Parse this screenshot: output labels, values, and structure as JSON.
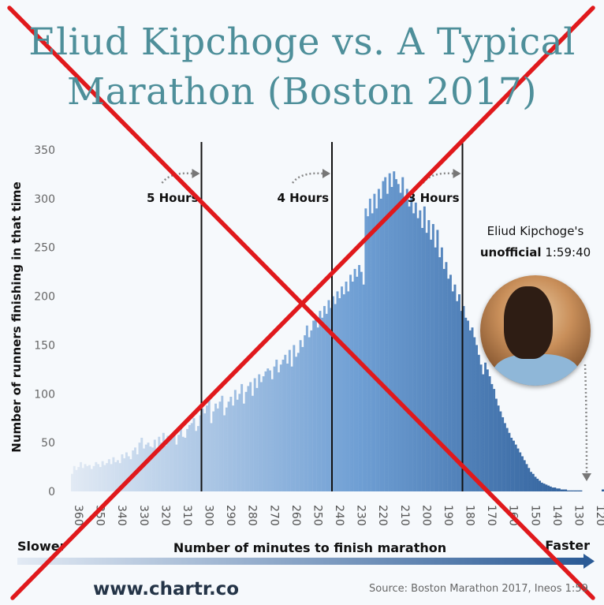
{
  "title_line1": "Eliud Kipchoge vs. A Typical",
  "title_line2": "Marathon (Boston 2017)",
  "kipchoge_label_line1": "Eliud Kipchoge's",
  "kipchoge_label_bold": "unofficial",
  "kipchoge_label_time": "1:59:40",
  "photo_icon": "portrait-photo",
  "arrow_slower": "Slower",
  "arrow_faster": "Faster",
  "brand": "www.chartr.co",
  "source": "Source: Boston Marathon 2017, Ineos 1:59",
  "colors": {
    "title": "#4e8f9a",
    "bar_light": "#d9e4f2",
    "bar_dark": "#2d5f9a",
    "cross": "#e0191c",
    "guide": "#111111"
  },
  "chart_data": {
    "type": "bar",
    "xlabel": "Number of minutes to finish marathon",
    "ylabel": "Number of runners finishing in that time",
    "x_direction": "descending",
    "xlim": [
      360,
      120
    ],
    "ylim": [
      0,
      350
    ],
    "yticks": [
      0,
      50,
      100,
      150,
      200,
      250,
      300,
      350
    ],
    "xticks": [
      360,
      350,
      340,
      330,
      320,
      310,
      300,
      290,
      280,
      270,
      260,
      250,
      240,
      230,
      220,
      210,
      200,
      190,
      180,
      170,
      160,
      150,
      140,
      130,
      120
    ],
    "grid": false,
    "bin_minutes": 1,
    "bins_first_minute": 360,
    "values": [
      18,
      26,
      22,
      25,
      30,
      24,
      28,
      26,
      27,
      23,
      26,
      30,
      28,
      25,
      31,
      27,
      29,
      33,
      28,
      35,
      30,
      32,
      29,
      38,
      34,
      40,
      36,
      33,
      42,
      45,
      38,
      50,
      55,
      44,
      48,
      50,
      46,
      45,
      53,
      42,
      56,
      50,
      60,
      47,
      57,
      52,
      55,
      62,
      48,
      58,
      66,
      56,
      55,
      64,
      68,
      70,
      75,
      62,
      67,
      78,
      85,
      80,
      88,
      95,
      70,
      82,
      90,
      85,
      92,
      98,
      78,
      86,
      92,
      97,
      88,
      104,
      94,
      100,
      110,
      90,
      102,
      108,
      112,
      98,
      116,
      106,
      120,
      112,
      118,
      123,
      126,
      124,
      115,
      128,
      135,
      122,
      130,
      135,
      140,
      131,
      145,
      128,
      150,
      138,
      142,
      155,
      148,
      160,
      170,
      158,
      165,
      175,
      180,
      168,
      185,
      178,
      190,
      182,
      196,
      188,
      200,
      192,
      205,
      198,
      210,
      202,
      215,
      205,
      222,
      215,
      228,
      220,
      232,
      225,
      212,
      290,
      282,
      300,
      285,
      305,
      290,
      310,
      300,
      318,
      322,
      305,
      326,
      312,
      328,
      320,
      315,
      306,
      322,
      300,
      310,
      292,
      302,
      285,
      296,
      280,
      288,
      270,
      292,
      265,
      278,
      258,
      274,
      250,
      268,
      240,
      250,
      228,
      235,
      218,
      222,
      205,
      212,
      195,
      202,
      185,
      190,
      178,
      175,
      165,
      168,
      158,
      150,
      140,
      130,
      120,
      132,
      125,
      118,
      110,
      105,
      95,
      88,
      82,
      76,
      70,
      65,
      60,
      55,
      52,
      48,
      44,
      40,
      36,
      32,
      28,
      24,
      20,
      18,
      15,
      13,
      11,
      9,
      8,
      7,
      6,
      5,
      4,
      4,
      3,
      3,
      2,
      2,
      2,
      1,
      1,
      1,
      1,
      1,
      1,
      1,
      0,
      0,
      0,
      0,
      0,
      0,
      0,
      0,
      0,
      2
    ],
    "markers": [
      {
        "minutes": 300,
        "label": "5 Hours"
      },
      {
        "minutes": 240,
        "label": "4 Hours"
      },
      {
        "minutes": 180,
        "label": "3 Hours"
      }
    ],
    "highlight": {
      "minutes": 120,
      "label": "Eliud Kipchoge's unofficial 1:59:40"
    }
  }
}
